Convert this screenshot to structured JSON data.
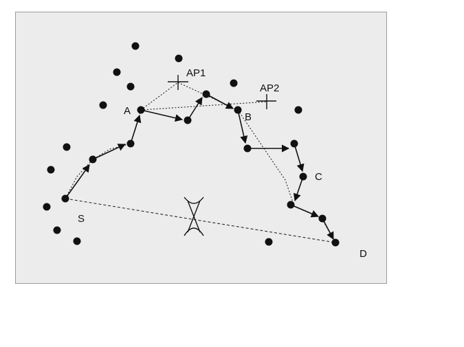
{
  "labels": {
    "s": "S",
    "a": "A",
    "b": "B",
    "c": "C",
    "d": "D",
    "ap1": "AP1",
    "ap2": "AP2"
  },
  "colors": {
    "ink": "#111111",
    "panel": "#ececec"
  }
}
